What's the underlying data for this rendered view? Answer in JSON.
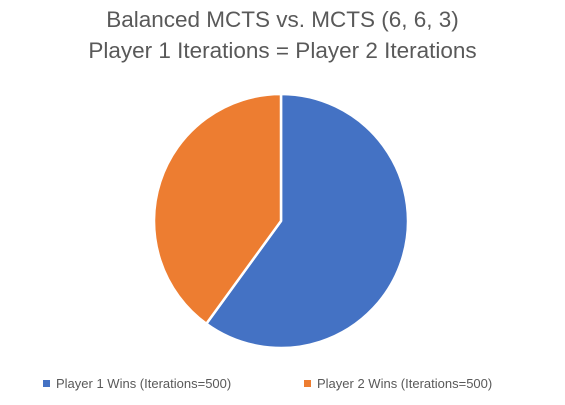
{
  "chart_data": {
    "type": "pie",
    "title": [
      "Balanced MCTS vs. MCTS (6, 6, 3)",
      "Player 1 Iterations = Player 2 Iterations"
    ],
    "categories": [
      "Player 1 Wins (Iterations=500)",
      "Player 2 Wins (Iterations=500)"
    ],
    "values": [
      60,
      40
    ],
    "colors": [
      "#4472C4",
      "#ED7D31"
    ],
    "legend_position": "bottom",
    "start_angle_deg": 0,
    "direction": "clockwise"
  }
}
